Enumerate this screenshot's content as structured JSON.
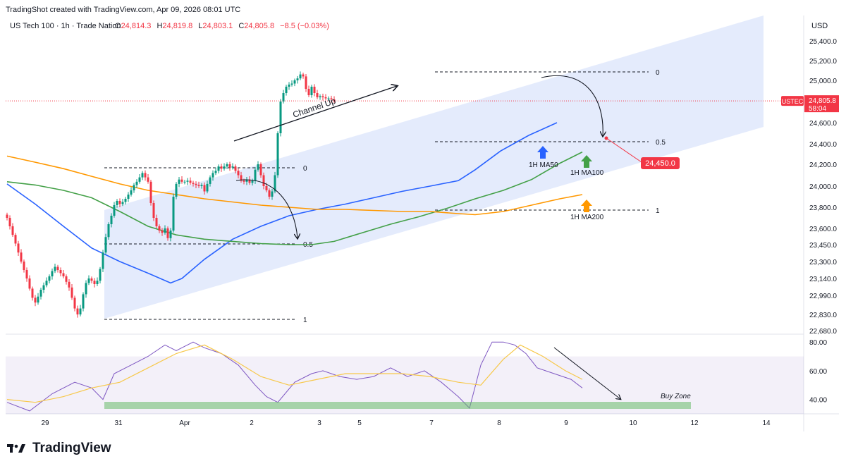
{
  "header": {
    "watermark": "TradingShot created with TradingView.com, Apr 09, 2026 08:01 UTC"
  },
  "footer": {
    "brand": "TradingView",
    "logo_icon": "tradingview-logo-icon"
  },
  "chart_data": [
    {
      "type": "candlestick",
      "title": "US Tech 100 · 1h · Trade Nation",
      "ohlc": {
        "o_label": "O",
        "o": "24,814.3",
        "h_label": "H",
        "h": "24,819.8",
        "l_label": "L",
        "l": "24,803.1",
        "c_label": "C",
        "c": "24,805.8",
        "change": "−8.5 (−0.03%)"
      },
      "currency": "USD",
      "ylim": [
        22600,
        25600
      ],
      "yticks": [
        "25,400.0",
        "25,200.0",
        "25,000.0",
        "24,800.0",
        "24,600.0",
        "24,400.0",
        "24,200.0",
        "24,000.0",
        "23,800.0",
        "23,600.0",
        "23,450.0",
        "23,300.0",
        "23,140.0",
        "22,990.0",
        "22,830.0",
        "22,680.0"
      ],
      "ytick_values": [
        25400,
        25200,
        25000,
        24800,
        24600,
        24400,
        24200,
        24000,
        23800,
        23600,
        23450,
        23300,
        23140,
        22990,
        22830,
        22680
      ],
      "xticks": [
        "29",
        "31",
        "Apr",
        "2",
        "3",
        "5",
        "7",
        "8",
        "9",
        "10",
        "12",
        "14"
      ],
      "price_tag": {
        "symbol": "USTEC",
        "price": "24,805.8",
        "countdown": "58:04",
        "value": 24805.8,
        "color": "#f23645"
      },
      "target": {
        "label": "24,450.0",
        "value": 24450,
        "color": "#f23645"
      },
      "annotations": {
        "channel": "Channel Up",
        "ma50": "1H MA50",
        "ma100": "1H MA100",
        "ma200": "1H MA200"
      },
      "fib_labels": {
        "first": [
          "0",
          "0.5",
          "1"
        ],
        "second": [
          "0",
          "0.5",
          "1"
        ]
      },
      "colors": {
        "up": "#089981",
        "down": "#f23645",
        "ma50": "#2962ff",
        "ma100": "#43a047",
        "ma200": "#ff9800",
        "channel": "#dbe4fb"
      },
      "candles_close": [
        23700,
        23620,
        23540,
        23460,
        23380,
        23300,
        23220,
        23140,
        23050,
        22970,
        22930,
        22980,
        23040,
        23080,
        23120,
        23160,
        23210,
        23250,
        23220,
        23190,
        23160,
        23110,
        23060,
        22970,
        22880,
        22830,
        22880,
        23000,
        23100,
        23140,
        23120,
        23090,
        23120,
        23230,
        23380,
        23520,
        23640,
        23720,
        23820,
        23860,
        23830,
        23850,
        23880,
        23920,
        23960,
        24010,
        24040,
        24080,
        24120,
        24080,
        24040,
        23840,
        23700,
        23620,
        23580,
        23560,
        23600,
        23510,
        23580,
        23900,
        24020,
        24060,
        24040,
        24040,
        24050,
        24030,
        24020,
        24010,
        24000,
        24010,
        23950,
        24020,
        24080,
        24120,
        24140,
        24180,
        24160,
        24180,
        24200,
        24170,
        24180,
        24140,
        24100,
        24050,
        24040,
        24060,
        24030,
        24050,
        24150,
        24200,
        24100,
        24000,
        23960,
        23900,
        23950,
        24100,
        24500,
        24800,
        24880,
        24940,
        24960,
        24970,
        25000,
        25020,
        25060,
        25040,
        24920,
        24860,
        24940,
        24880,
        24840,
        24850,
        24840,
        24830,
        24830,
        24820,
        24806
      ],
      "series": [
        {
          "name": "1H MA50",
          "points": [
            [
              0,
              24020
            ],
            [
              10,
              23830
            ],
            [
              20,
              23620
            ],
            [
              30,
              23420
            ],
            [
              40,
              23300
            ],
            [
              50,
              23190
            ],
            [
              58,
              23100
            ],
            [
              62,
              23140
            ],
            [
              70,
              23320
            ],
            [
              80,
              23500
            ],
            [
              90,
              23620
            ],
            [
              100,
              23720
            ],
            [
              110,
              23780
            ],
            [
              120,
              23830
            ],
            [
              130,
              23890
            ],
            [
              140,
              23950
            ],
            [
              150,
              24000
            ],
            [
              160,
              24050
            ],
            [
              166,
              24150
            ],
            [
              175,
              24330
            ],
            [
              185,
              24480
            ],
            [
              195,
              24600
            ]
          ]
        },
        {
          "name": "1H MA100",
          "points": [
            [
              0,
              24040
            ],
            [
              10,
              24010
            ],
            [
              20,
              23960
            ],
            [
              30,
              23890
            ],
            [
              40,
              23760
            ],
            [
              50,
              23620
            ],
            [
              60,
              23540
            ],
            [
              70,
              23500
            ],
            [
              80,
              23480
            ],
            [
              90,
              23460
            ],
            [
              100,
              23450
            ],
            [
              108,
              23450
            ],
            [
              116,
              23480
            ],
            [
              126,
              23560
            ],
            [
              136,
              23640
            ],
            [
              146,
              23710
            ],
            [
              156,
              23790
            ],
            [
              166,
              23880
            ],
            [
              176,
              23960
            ],
            [
              186,
              24060
            ],
            [
              196,
              24210
            ],
            [
              204,
              24320
            ]
          ]
        },
        {
          "name": "1H MA200",
          "points": [
            [
              0,
              24280
            ],
            [
              10,
              24220
            ],
            [
              20,
              24160
            ],
            [
              30,
              24090
            ],
            [
              40,
              24020
            ],
            [
              50,
              23960
            ],
            [
              60,
              23920
            ],
            [
              70,
              23880
            ],
            [
              80,
              23850
            ],
            [
              90,
              23820
            ],
            [
              100,
              23800
            ],
            [
              110,
              23780
            ],
            [
              120,
              23780
            ],
            [
              130,
              23770
            ],
            [
              140,
              23760
            ],
            [
              150,
              23760
            ],
            [
              160,
              23740
            ],
            [
              166,
              23730
            ],
            [
              176,
              23760
            ],
            [
              186,
              23820
            ],
            [
              196,
              23880
            ],
            [
              204,
              23920
            ]
          ]
        }
      ]
    },
    {
      "type": "line",
      "title": "",
      "ylim": [
        30,
        85
      ],
      "yticks": [
        "80.00",
        "60.00",
        "40.00"
      ],
      "ytick_values": [
        80,
        60,
        40
      ],
      "buy_zone": "Buy Zone",
      "series": [
        {
          "name": "",
          "color": "#7e57c2",
          "points": [
            [
              0,
              38
            ],
            [
              8,
              32
            ],
            [
              16,
              44
            ],
            [
              24,
              52
            ],
            [
              30,
              48
            ],
            [
              34,
              40
            ],
            [
              38,
              58
            ],
            [
              44,
              64
            ],
            [
              50,
              70
            ],
            [
              56,
              78
            ],
            [
              60,
              74
            ],
            [
              66,
              80
            ],
            [
              70,
              76
            ],
            [
              76,
              72
            ],
            [
              82,
              64
            ],
            [
              88,
              50
            ],
            [
              92,
              42
            ],
            [
              96,
              38
            ],
            [
              102,
              52
            ],
            [
              108,
              58
            ],
            [
              112,
              60
            ],
            [
              118,
              56
            ],
            [
              124,
              54
            ],
            [
              130,
              56
            ],
            [
              136,
              62
            ],
            [
              142,
              56
            ],
            [
              148,
              60
            ],
            [
              154,
              52
            ],
            [
              160,
              42
            ],
            [
              164,
              34
            ],
            [
              168,
              64
            ],
            [
              172,
              80
            ],
            [
              176,
              80
            ],
            [
              180,
              78
            ],
            [
              184,
              72
            ],
            [
              188,
              62
            ],
            [
              194,
              58
            ],
            [
              200,
              54
            ],
            [
              204,
              48
            ]
          ]
        },
        {
          "name": "",
          "color": "#f7c84a",
          "points": [
            [
              0,
              40
            ],
            [
              10,
              38
            ],
            [
              20,
              42
            ],
            [
              30,
              48
            ],
            [
              40,
              52
            ],
            [
              50,
              62
            ],
            [
              60,
              72
            ],
            [
              70,
              78
            ],
            [
              80,
              68
            ],
            [
              90,
              56
            ],
            [
              100,
              50
            ],
            [
              110,
              54
            ],
            [
              120,
              58
            ],
            [
              130,
              58
            ],
            [
              140,
              58
            ],
            [
              150,
              56
            ],
            [
              160,
              52
            ],
            [
              168,
              50
            ],
            [
              176,
              68
            ],
            [
              182,
              78
            ],
            [
              190,
              70
            ],
            [
              198,
              60
            ],
            [
              204,
              54
            ]
          ]
        }
      ]
    }
  ]
}
